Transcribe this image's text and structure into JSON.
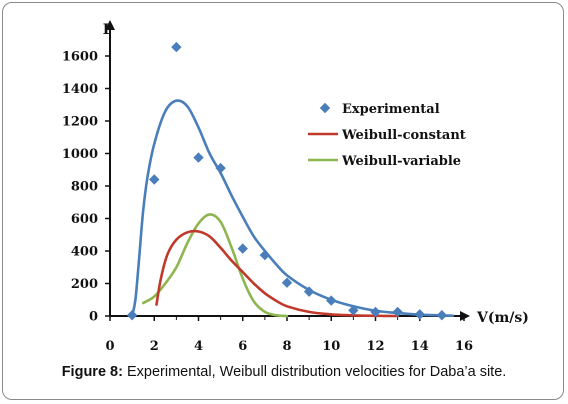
{
  "chart_data": {
    "type": "scatter+line",
    "title": "",
    "xlabel": "V(m/s)",
    "ylabel": "P",
    "xlim": [
      0,
      16
    ],
    "ylim": [
      0,
      1600
    ],
    "xticks": [
      "0",
      "2",
      "4",
      "6",
      "8",
      "10",
      "12",
      "14",
      "16"
    ],
    "yticks": [
      "0",
      "200",
      "400",
      "600",
      "800",
      "1000",
      "1200",
      "1400",
      "1600"
    ],
    "grid": false,
    "legend_position": "right",
    "series": [
      {
        "name": "Experimental",
        "kind": "scatter",
        "color": "#4a7ebb",
        "points": [
          [
            1,
            5
          ],
          [
            2,
            840
          ],
          [
            3,
            1655
          ],
          [
            4,
            975
          ],
          [
            5,
            910
          ],
          [
            6,
            415
          ],
          [
            7,
            375
          ],
          [
            8,
            205
          ],
          [
            9,
            150
          ],
          [
            10,
            95
          ],
          [
            11,
            35
          ],
          [
            12,
            25
          ],
          [
            13,
            25
          ],
          [
            14,
            10
          ],
          [
            15,
            5
          ]
        ]
      },
      {
        "name": "Weibull-constant",
        "kind": "line",
        "color": "#c0392b",
        "points": [
          [
            2.1,
            70
          ],
          [
            2.3,
            230
          ],
          [
            2.6,
            380
          ],
          [
            3,
            470
          ],
          [
            3.5,
            515
          ],
          [
            4,
            520
          ],
          [
            4.5,
            490
          ],
          [
            5,
            420
          ],
          [
            5.5,
            340
          ],
          [
            6,
            270
          ],
          [
            6.5,
            200
          ],
          [
            7,
            140
          ],
          [
            7.5,
            95
          ],
          [
            8,
            60
          ],
          [
            9,
            25
          ],
          [
            10,
            10
          ],
          [
            11,
            4
          ],
          [
            12,
            1
          ],
          [
            13,
            0
          ]
        ]
      },
      {
        "name": "Weibull-variable",
        "kind": "line",
        "color": "#8db550",
        "points": [
          [
            1.5,
            80
          ],
          [
            2,
            120
          ],
          [
            2.5,
            200
          ],
          [
            3,
            300
          ],
          [
            3.5,
            450
          ],
          [
            4,
            570
          ],
          [
            4.5,
            625
          ],
          [
            5,
            580
          ],
          [
            5.5,
            420
          ],
          [
            6,
            230
          ],
          [
            6.5,
            90
          ],
          [
            7,
            25
          ],
          [
            7.5,
            5
          ],
          [
            8,
            0
          ]
        ]
      },
      {
        "name": "",
        "kind": "line",
        "color": "#4a7ebb",
        "points": [
          [
            1,
            0
          ],
          [
            1.15,
            100
          ],
          [
            1.3,
            330
          ],
          [
            1.5,
            650
          ],
          [
            1.7,
            860
          ],
          [
            2,
            1060
          ],
          [
            2.5,
            1260
          ],
          [
            3,
            1325
          ],
          [
            3.5,
            1290
          ],
          [
            4,
            1160
          ],
          [
            4.5,
            1000
          ],
          [
            5,
            880
          ],
          [
            5.5,
            740
          ],
          [
            6,
            610
          ],
          [
            6.5,
            490
          ],
          [
            7,
            400
          ],
          [
            7.5,
            320
          ],
          [
            8,
            250
          ],
          [
            9,
            160
          ],
          [
            10,
            100
          ],
          [
            11,
            60
          ],
          [
            12,
            32
          ],
          [
            13,
            18
          ],
          [
            14,
            8
          ],
          [
            15,
            4
          ],
          [
            15.5,
            2
          ]
        ]
      }
    ]
  },
  "caption": {
    "label": "Figure 8:",
    "text": " Experimental, Weibull distribution velocities for Daba’a site."
  }
}
